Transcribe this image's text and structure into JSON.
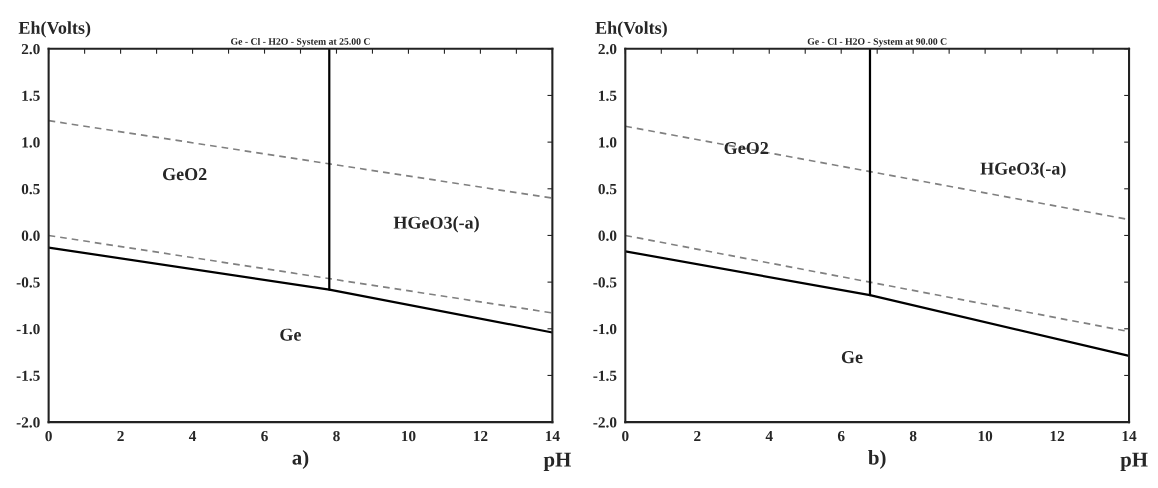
{
  "chart_data": [
    {
      "type": "line",
      "title": "Ge - Cl - H2O - System at 25.00 C",
      "xlabel": "pH",
      "ylabel": "Eh(Volts)",
      "xlim": [
        0,
        14
      ],
      "ylim": [
        -2.0,
        2.0
      ],
      "xticks": [
        0,
        {
          "value": 1,
          "label": null
        },
        2,
        {
          "value": 3,
          "label": null
        },
        4,
        {
          "value": 5,
          "label": null
        },
        6,
        {
          "value": 7,
          "label": null
        },
        8,
        {
          "value": 9,
          "label": null
        },
        10,
        {
          "value": 11,
          "label": null
        },
        12,
        {
          "value": 13,
          "label": null
        },
        14
      ],
      "yticks": [
        {
          "value": -2.0,
          "label": "-2.0"
        },
        {
          "value": -1.5,
          "label": "-1.5"
        },
        {
          "value": -1.0,
          "label": "-1.0"
        },
        {
          "value": -0.5,
          "label": "-0.5"
        },
        {
          "value": 0.0,
          "label": "0.0"
        },
        {
          "value": 0.5,
          "label": "0.5"
        },
        {
          "value": 1.0,
          "label": "1.0"
        },
        {
          "value": 1.5,
          "label": "1.5"
        },
        {
          "value": 2.0,
          "label": "2.0"
        }
      ],
      "grid": false,
      "legend": false,
      "series": [
        {
          "color": "#808080",
          "line_style": "dashed",
          "x": [
            0,
            14
          ],
          "values": [
            1.23,
            0.4
          ]
        },
        {
          "color": "#808080",
          "line_style": "dashed",
          "x": [
            0,
            14
          ],
          "values": [
            0.0,
            -0.83
          ]
        },
        {
          "color": "#000000",
          "line_style": "solid",
          "x": [
            0,
            7.8,
            14
          ],
          "values": [
            -0.13,
            -0.58,
            -1.04
          ]
        },
        {
          "color": "#000000",
          "line_style": "solid",
          "x": [
            7.8,
            7.8
          ],
          "values": [
            -0.58,
            2.0
          ]
        }
      ],
      "annotations": [
        "GeO2",
        "HGeO3(-a)",
        "Ge",
        "a)"
      ]
    },
    {
      "type": "line",
      "title": "Ge - Cl - H2O - System at 90.00 C",
      "xlabel": "pH",
      "ylabel": "Eh(Volts)",
      "xlim": [
        0,
        14
      ],
      "ylim": [
        -2.0,
        2.0
      ],
      "xticks": [
        0,
        {
          "value": 1,
          "label": null
        },
        2,
        {
          "value": 3,
          "label": null
        },
        4,
        {
          "value": 5,
          "label": null
        },
        6,
        {
          "value": 7,
          "label": null
        },
        8,
        {
          "value": 9,
          "label": null
        },
        10,
        {
          "value": 11,
          "label": null
        },
        12,
        {
          "value": 13,
          "label": null
        },
        14
      ],
      "yticks": [
        {
          "value": -2.0,
          "label": "-2.0"
        },
        {
          "value": -1.5,
          "label": "-1.5"
        },
        {
          "value": -1.0,
          "label": "-1.0"
        },
        {
          "value": -0.5,
          "label": "-0.5"
        },
        {
          "value": 0.0,
          "label": "0.0"
        },
        {
          "value": 0.5,
          "label": "0.5"
        },
        {
          "value": 1.0,
          "label": "1.0"
        },
        {
          "value": 1.5,
          "label": "1.5"
        },
        {
          "value": 2.0,
          "label": "2.0"
        }
      ],
      "grid": false,
      "legend": false,
      "series": [
        {
          "color": "#808080",
          "line_style": "dashed",
          "x": [
            0,
            14
          ],
          "values": [
            1.17,
            0.17
          ]
        },
        {
          "color": "#808080",
          "line_style": "dashed",
          "x": [
            0,
            14
          ],
          "values": [
            0.0,
            -1.03
          ]
        },
        {
          "color": "#000000",
          "line_style": "solid",
          "x": [
            0,
            6.8,
            14
          ],
          "values": [
            -0.17,
            -0.64,
            -1.29
          ]
        },
        {
          "color": "#000000",
          "line_style": "solid",
          "x": [
            6.8,
            6.8
          ],
          "values": [
            -0.64,
            2.0
          ]
        }
      ],
      "annotations": [
        "GeO2",
        "HGeO3(-a)",
        "Ge",
        "b)"
      ]
    }
  ]
}
